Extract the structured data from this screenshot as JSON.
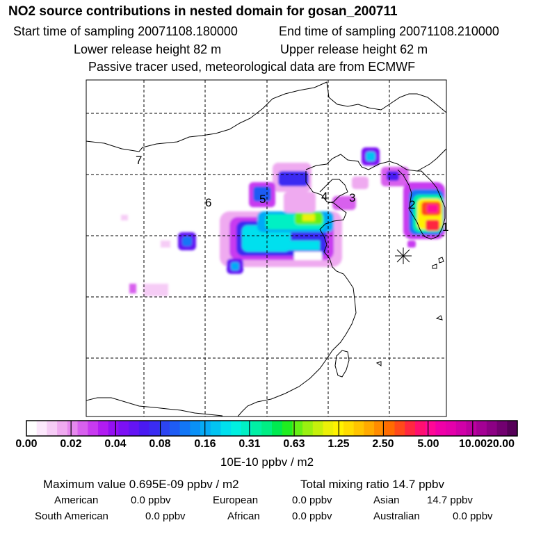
{
  "header": {
    "title": "NO2 source contributions in nested domain for gosan_200711",
    "start_time": "Start time of sampling 20071108.180000",
    "end_time": "End time of sampling 20071108.210000",
    "lower_release": "Lower release height   82 m",
    "upper_release": "Upper release height   62 m",
    "info": "Passive tracer used, meteorological data are from ECMWF"
  },
  "map": {
    "grid": "on",
    "station_marker": "asterisk",
    "source_labels": [
      "1",
      "2",
      "3",
      "4",
      "5",
      "6",
      "7"
    ],
    "colors": {
      "land_outline": "#000000",
      "grid": "#000000",
      "background": "#ffffff"
    }
  },
  "colorbar": {
    "tick_labels": [
      "0.00",
      "0.02",
      "0.04",
      "0.08",
      "0.16",
      "0.31",
      "0.63",
      "1.25",
      "2.50",
      "5.00",
      "10.00",
      "20.00"
    ],
    "colors": [
      "#ffffff",
      "#fce8fc",
      "#f6ccf6",
      "#efaaf0",
      "#e688ee",
      "#d860ee",
      "#c83af0",
      "#b11cf2",
      "#9410f2",
      "#7c10f4",
      "#6414f4",
      "#4a1af2",
      "#3a2cf2",
      "#2c44f2",
      "#1e5cf4",
      "#1276f6",
      "#0a90f6",
      "#06aaf6",
      "#02c4f2",
      "#00e0ee",
      "#00f0e0",
      "#00f0c4",
      "#00f0a4",
      "#00ee84",
      "#00ea50",
      "#20ee20",
      "#66f014",
      "#9af010",
      "#c6f00c",
      "#ecf008",
      "#fff200",
      "#ffdc00",
      "#ffc400",
      "#ffaa00",
      "#ff8c00",
      "#ff6c00",
      "#ff4a1a",
      "#ff2840",
      "#ff1070",
      "#ff0896",
      "#f000a8",
      "#e400aa",
      "#d000a8",
      "#bc00a0",
      "#a40094",
      "#8c0084",
      "#720070",
      "#560058"
    ],
    "unit": "10E-10 ppbv / m2"
  },
  "stats": {
    "max_value": "Maximum value  0.695E-09 ppbv / m2",
    "total_mixing": "Total mixing ratio       14.7 ppbv",
    "american_label": "American",
    "american_value": "0.0 ppbv",
    "european_label": "European",
    "european_value": "0.0 ppbv",
    "asian_label": "Asian",
    "asian_value": "14.7 ppbv",
    "south_american_label": "South American",
    "south_american_value": "0.0 ppbv",
    "african_label": "African",
    "african_value": "0.0 ppbv",
    "australian_label": "Australian",
    "australian_value": "0.0 ppbv"
  }
}
